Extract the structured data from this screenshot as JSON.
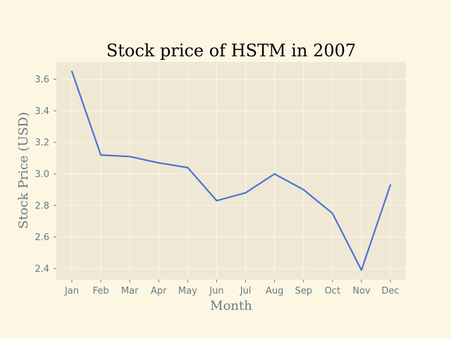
{
  "chart_data": {
    "type": "line",
    "title": "Stock price of HSTM in 2007",
    "xlabel": "Month",
    "ylabel": "Stock Price (USD)",
    "categories": [
      "Jan",
      "Feb",
      "Mar",
      "Apr",
      "May",
      "Jun",
      "Jul",
      "Aug",
      "Sep",
      "Oct",
      "Nov",
      "Dec"
    ],
    "series": [
      {
        "values": [
          3.65,
          3.12,
          3.11,
          3.07,
          3.04,
          2.83,
          2.88,
          3.0,
          2.9,
          2.75,
          2.39,
          2.93
        ],
        "color": "#4c72d4"
      }
    ],
    "ylim": [
      2.33,
      3.71
    ],
    "yticks": [
      "2.4",
      "2.6",
      "2.8",
      "3.0",
      "3.2",
      "3.4",
      "3.6"
    ],
    "grid": true,
    "legend": "none",
    "colors": {
      "background": "#fdf6e3",
      "plot_background": "#eee8d5",
      "text": "#657b83"
    }
  }
}
